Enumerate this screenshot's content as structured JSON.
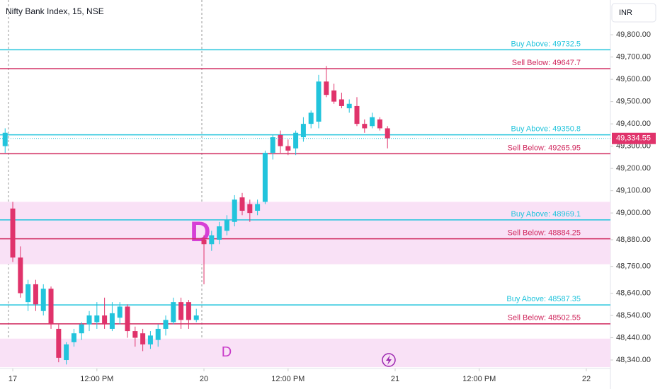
{
  "chart_data": {
    "type": "candlestick",
    "title": "Nifty Bank Index, 15, NSE",
    "currency": "INR",
    "up_color": "#22c4dc",
    "down_color": "#e0336b",
    "open": [
      49300,
      49020,
      48800,
      48600,
      48680,
      48560,
      48660,
      48480,
      48340,
      48420,
      48460,
      48500,
      48510,
      48540,
      48480,
      48530,
      48580,
      48470,
      48460,
      48410,
      48430,
      48480,
      48510,
      48600,
      48600,
      48520,
      48880,
      48860,
      48880,
      48920,
      48960,
      49070,
      49040,
      49010,
      49050,
      49270,
      49350,
      49300,
      49290,
      49340,
      49400,
      49410,
      49590,
      49550,
      49510,
      49470,
      49480,
      49400,
      49390,
      49420,
      49380
    ],
    "high": [
      49380,
      49050,
      48850,
      48700,
      48700,
      48680,
      48670,
      48500,
      48420,
      48480,
      48510,
      48560,
      48600,
      48620,
      48600,
      48600,
      48590,
      48490,
      48480,
      48470,
      48500,
      48540,
      48620,
      48620,
      48610,
      48570,
      48900,
      48920,
      48960,
      48990,
      49080,
      49090,
      49060,
      49060,
      49280,
      49350,
      49370,
      49330,
      49370,
      49430,
      49460,
      49620,
      49660,
      49580,
      49540,
      49510,
      49520,
      49420,
      49450,
      49430,
      49390
    ],
    "low": [
      49270,
      48780,
      48620,
      48560,
      48560,
      48540,
      48480,
      48330,
      48320,
      48400,
      48430,
      48470,
      48480,
      48480,
      48470,
      48500,
      48440,
      48400,
      48380,
      48390,
      48400,
      48450,
      48500,
      48480,
      48480,
      48510,
      48680,
      48830,
      48860,
      48900,
      48940,
      48990,
      48960,
      48990,
      49040,
      49240,
      49270,
      49260,
      49260,
      49320,
      49380,
      49380,
      49520,
      49490,
      49470,
      49450,
      49390,
      49360,
      49380,
      49370,
      49290
    ],
    "close": [
      49360,
      48800,
      48640,
      48680,
      48590,
      48660,
      48500,
      48350,
      48410,
      48460,
      48500,
      48540,
      48540,
      48500,
      48550,
      48580,
      48470,
      48440,
      48410,
      48450,
      48480,
      48520,
      48600,
      48520,
      48520,
      48540,
      48860,
      48900,
      48940,
      48970,
      49060,
      49010,
      49000,
      49040,
      49270,
      49340,
      49300,
      49280,
      49360,
      49400,
      49450,
      49590,
      49530,
      49500,
      49480,
      49490,
      49400,
      49380,
      49430,
      49380,
      49335
    ],
    "last_price": {
      "value": 49334.55,
      "label": "49,334.55"
    },
    "levels": [
      {
        "label": "Buy Above: 49732.5",
        "value": 49732.5,
        "color": "#22c4dc"
      },
      {
        "label": "Sell Below: 49647.7",
        "value": 49647.7,
        "color": "#d0285e"
      },
      {
        "label": "Buy Above: 49350.8",
        "value": 49350.8,
        "color": "#22c4dc"
      },
      {
        "label": "Sell Below: 49265.95",
        "value": 49265.95,
        "color": "#d0285e"
      },
      {
        "label": "Buy Above: 48969.1",
        "value": 48969.1,
        "color": "#22c4dc"
      },
      {
        "label": "Sell Below: 48884.25",
        "value": 48884.25,
        "color": "#d0285e"
      },
      {
        "label": "Buy Above: 48587.35",
        "value": 48587.35,
        "color": "#22c4dc"
      },
      {
        "label": "Sell Below: 48502.55",
        "value": 48502.55,
        "color": "#d0285e"
      }
    ],
    "zones": [
      {
        "top": 49050,
        "bottom": 48770,
        "label": "D",
        "color": "#f9e1f6"
      },
      {
        "top": 48436,
        "bottom": 48308,
        "label": "D",
        "color": "#f9e1f6"
      }
    ],
    "ylim": [
      48302,
      49956
    ],
    "yticks": [
      {
        "value": 49800,
        "label": "49,800.00"
      },
      {
        "value": 49700,
        "label": "49,700.00"
      },
      {
        "value": 49600,
        "label": "49,600.00"
      },
      {
        "value": 49500,
        "label": "49,500.00"
      },
      {
        "value": 49400,
        "label": "49,400.00"
      },
      {
        "value": 49300,
        "label": "49,300.00"
      },
      {
        "value": 49200,
        "label": "49,200.00"
      },
      {
        "value": 49100,
        "label": "49,100.00"
      },
      {
        "value": 49000,
        "label": "49,000.00"
      },
      {
        "value": 48880,
        "label": "48,880.00"
      },
      {
        "value": 48760,
        "label": "48,760.00"
      },
      {
        "value": 48640,
        "label": "48,640.00"
      },
      {
        "value": 48540,
        "label": "48,540.00"
      },
      {
        "value": 48440,
        "label": "48,440.00"
      },
      {
        "value": 48340,
        "label": "48,340.00"
      }
    ],
    "xlim": [
      -0.67,
      79.15
    ],
    "xticks": [
      {
        "value": 1,
        "label": "17"
      },
      {
        "value": 12,
        "label": "12:00 PM"
      },
      {
        "value": 26,
        "label": "20"
      },
      {
        "value": 37,
        "label": "12:00 PM"
      },
      {
        "value": 51,
        "label": "21"
      },
      {
        "value": 62,
        "label": "12:00 PM"
      },
      {
        "value": 76,
        "label": "22"
      }
    ]
  }
}
